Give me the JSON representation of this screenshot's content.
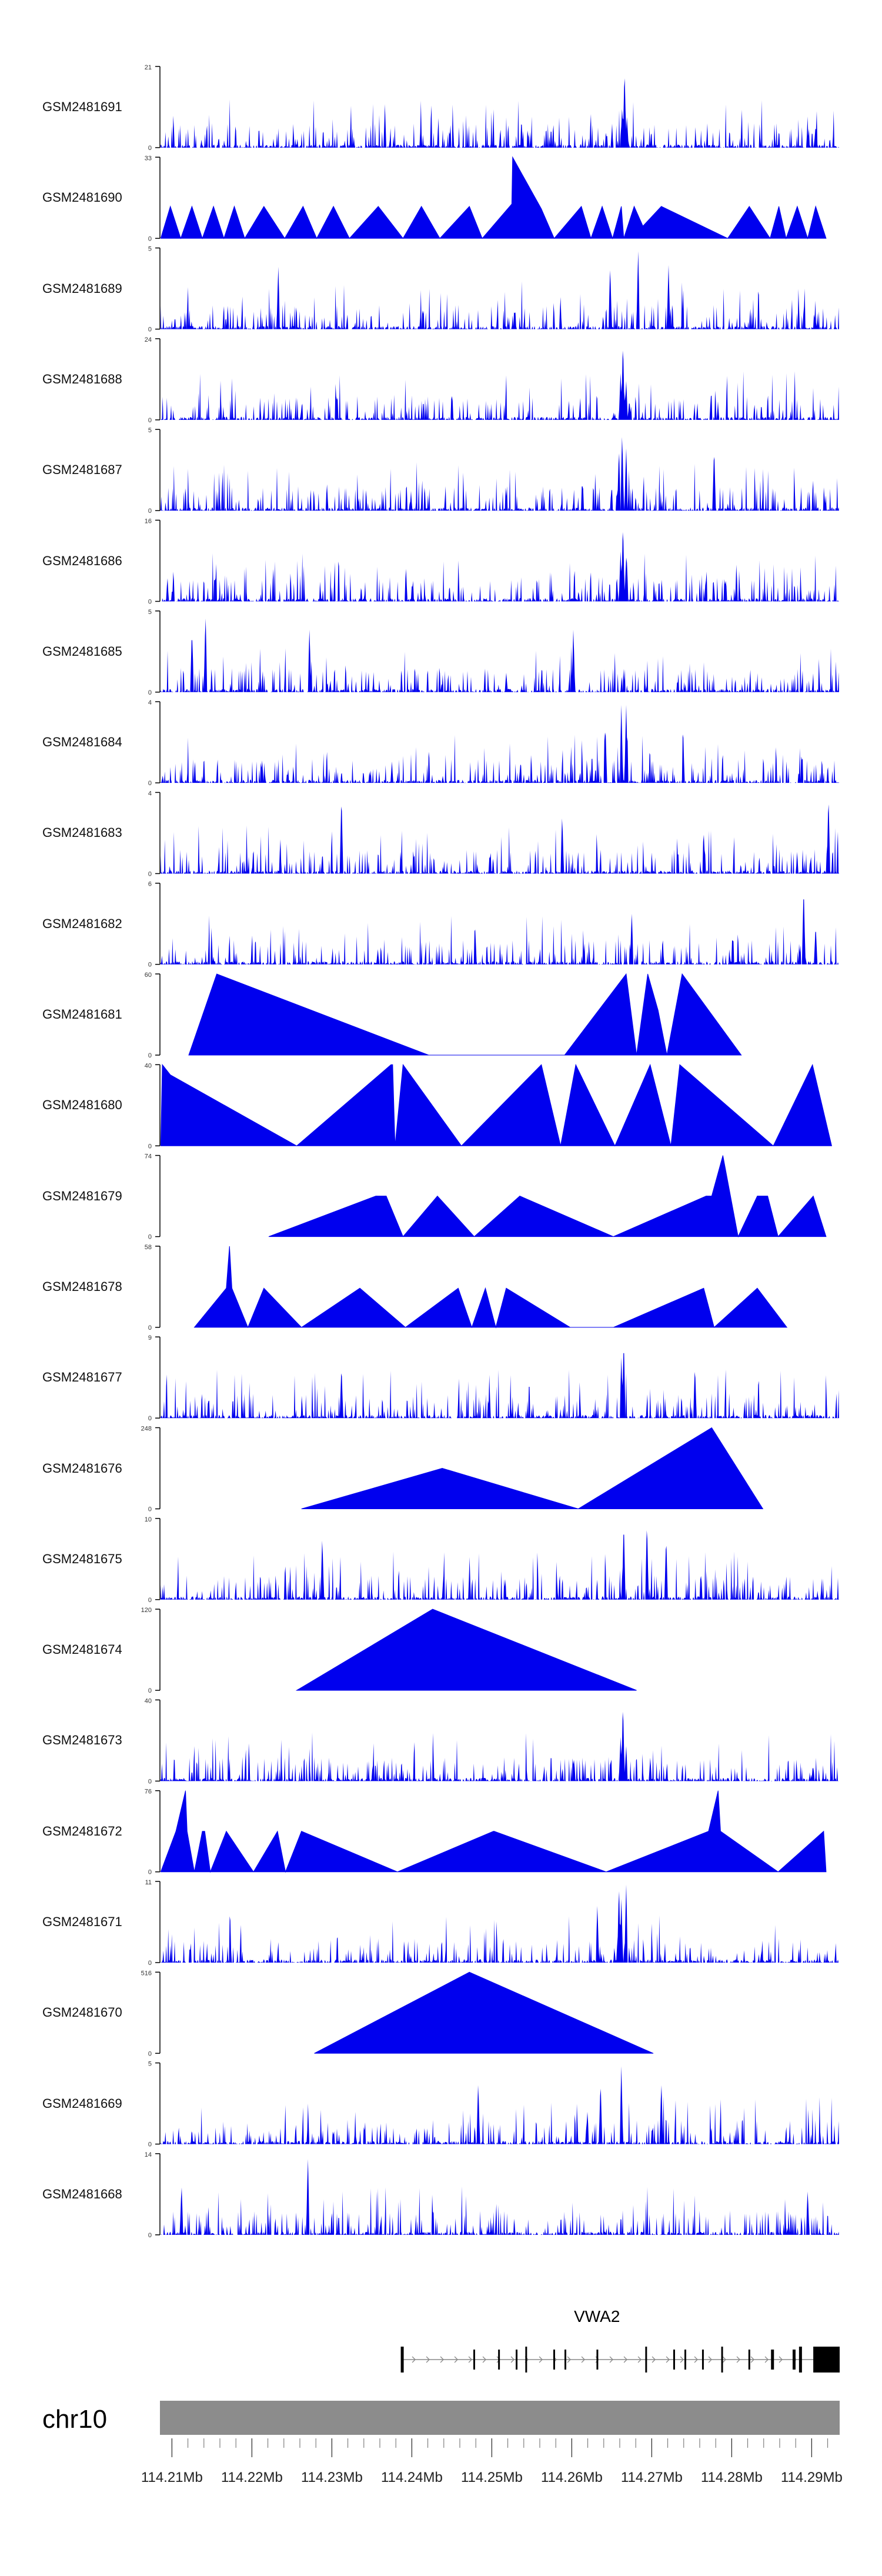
{
  "chart_data": {
    "type": "area",
    "title": "",
    "xlabel": "",
    "ylabel": "",
    "colors": {
      "signal": "#0000ee",
      "chrom_bar": "#8c8c8c",
      "gene": "#000000",
      "axis": "#000000"
    },
    "genome_axis": {
      "chromosome": "chr10",
      "unit": "Mb",
      "range": [
        114.2085,
        114.2935
      ],
      "major_ticks": [
        114.21,
        114.22,
        114.23,
        114.24,
        114.25,
        114.26,
        114.27,
        114.28,
        114.29
      ],
      "tick_labels": [
        "114.21Mb",
        "114.22Mb",
        "114.23Mb",
        "114.24Mb",
        "114.25Mb",
        "114.26Mb",
        "114.27Mb",
        "114.28Mb",
        "114.29Mb"
      ],
      "minor_tick_step": 0.002
    },
    "tracks": [
      {
        "name": "GSM2481691",
        "ymax": 21,
        "style": "dense",
        "peaks": [
          {
            "x": 114.2666,
            "y": 21
          },
          {
            "x": 114.2663,
            "y": 11
          },
          {
            "x": 114.2669,
            "y": 8
          },
          {
            "x": 114.2905,
            "y": 6
          }
        ]
      },
      {
        "name": "GSM2481690",
        "ymax": 33,
        "style": "sparse",
        "points": [
          [
            114.2086,
            0
          ],
          [
            114.2098,
            13
          ],
          [
            114.2111,
            0
          ],
          [
            114.2125,
            13
          ],
          [
            114.2138,
            0
          ],
          [
            114.2152,
            13
          ],
          [
            114.2165,
            0
          ],
          [
            114.2178,
            13
          ],
          [
            114.2191,
            0
          ],
          [
            114.2215,
            13
          ],
          [
            114.2241,
            0
          ],
          [
            114.2264,
            13
          ],
          [
            114.2281,
            0
          ],
          [
            114.2302,
            13
          ],
          [
            114.2322,
            0
          ],
          [
            114.2358,
            13
          ],
          [
            114.2389,
            0
          ],
          [
            114.2412,
            13
          ],
          [
            114.2435,
            0
          ],
          [
            114.2472,
            13
          ],
          [
            114.2488,
            0
          ],
          [
            114.2525,
            14
          ],
          [
            114.2526,
            33
          ],
          [
            114.2562,
            12
          ],
          [
            114.2578,
            0
          ],
          [
            114.2612,
            13
          ],
          [
            114.2624,
            0
          ],
          [
            114.2638,
            13
          ],
          [
            114.2651,
            0
          ],
          [
            114.2662,
            13
          ],
          [
            114.2665,
            0
          ],
          [
            114.2678,
            13
          ],
          [
            114.2689,
            5
          ],
          [
            114.2712,
            13
          ],
          [
            114.2795,
            0
          ],
          [
            114.2822,
            13
          ],
          [
            114.2848,
            0
          ],
          [
            114.2859,
            13
          ],
          [
            114.2868,
            0
          ],
          [
            114.2882,
            13
          ],
          [
            114.2895,
            0
          ],
          [
            114.2905,
            13
          ],
          [
            114.2918,
            0
          ]
        ]
      },
      {
        "name": "GSM2481689",
        "ymax": 5,
        "style": "dense",
        "peaks": [
          {
            "x": 114.2683,
            "y": 5
          },
          {
            "x": 114.2648,
            "y": 4
          },
          {
            "x": 114.2721,
            "y": 4
          },
          {
            "x": 114.2233,
            "y": 4
          }
        ]
      },
      {
        "name": "GSM2481688",
        "ymax": 24,
        "style": "dense",
        "peaks": [
          {
            "x": 114.2664,
            "y": 24
          },
          {
            "x": 114.2661,
            "y": 14
          },
          {
            "x": 114.2668,
            "y": 12
          },
          {
            "x": 114.2672,
            "y": 6
          }
        ]
      },
      {
        "name": "GSM2481687",
        "ymax": 5,
        "style": "dense",
        "peaks": [
          {
            "x": 114.2663,
            "y": 5
          },
          {
            "x": 114.2668,
            "y": 4
          },
          {
            "x": 114.2659,
            "y": 4
          },
          {
            "x": 114.2778,
            "y": 4
          }
        ]
      },
      {
        "name": "GSM2481686",
        "ymax": 16,
        "style": "dense",
        "peaks": [
          {
            "x": 114.2664,
            "y": 16
          },
          {
            "x": 114.2661,
            "y": 10
          },
          {
            "x": 114.2668,
            "y": 9
          }
        ]
      },
      {
        "name": "GSM2481685",
        "ymax": 5,
        "style": "dense",
        "peaks": [
          {
            "x": 114.2142,
            "y": 5
          },
          {
            "x": 114.2125,
            "y": 4
          },
          {
            "x": 114.2602,
            "y": 4
          },
          {
            "x": 114.2272,
            "y": 4
          }
        ]
      },
      {
        "name": "GSM2481684",
        "ymax": 4,
        "style": "dense",
        "peaks": [
          {
            "x": 114.2662,
            "y": 4
          },
          {
            "x": 114.2668,
            "y": 4
          },
          {
            "x": 114.2642,
            "y": 3
          }
        ]
      },
      {
        "name": "GSM2481683",
        "ymax": 4,
        "style": "dense",
        "peaks": [
          {
            "x": 114.2921,
            "y": 4
          },
          {
            "x": 114.2312,
            "y": 4
          },
          {
            "x": 114.2588,
            "y": 3
          }
        ]
      },
      {
        "name": "GSM2481682",
        "ymax": 6,
        "style": "dense",
        "peaks": [
          {
            "x": 114.289,
            "y": 6
          },
          {
            "x": 114.2675,
            "y": 4
          },
          {
            "x": 114.2905,
            "y": 3
          }
        ]
      },
      {
        "name": "GSM2481681",
        "ymax": 60,
        "style": "sparse",
        "points": [
          [
            114.2121,
            0
          ],
          [
            114.2156,
            60
          ],
          [
            114.2421,
            0
          ],
          [
            114.2591,
            0
          ],
          [
            114.2668,
            60
          ],
          [
            114.2681,
            0
          ],
          [
            114.2695,
            60
          ],
          [
            114.2708,
            33
          ],
          [
            114.2719,
            0
          ],
          [
            114.2738,
            60
          ],
          [
            114.2812,
            0
          ]
        ]
      },
      {
        "name": "GSM2481680",
        "ymax": 40,
        "style": "sparse",
        "points": [
          [
            114.2086,
            0
          ],
          [
            114.2088,
            40
          ],
          [
            114.2098,
            35
          ],
          [
            114.2256,
            0
          ],
          [
            114.2374,
            40
          ],
          [
            114.2376,
            40
          ],
          [
            114.2379,
            0
          ],
          [
            114.2389,
            40
          ],
          [
            114.2462,
            0
          ],
          [
            114.2562,
            40
          ],
          [
            114.2586,
            0
          ],
          [
            114.2605,
            40
          ],
          [
            114.2654,
            0
          ],
          [
            114.2698,
            40
          ],
          [
            114.2724,
            0
          ],
          [
            114.2735,
            40
          ],
          [
            114.2852,
            0
          ],
          [
            114.2901,
            40
          ],
          [
            114.2925,
            0
          ]
        ]
      },
      {
        "name": "GSM2481679",
        "ymax": 74,
        "style": "sparse",
        "points": [
          [
            114.2221,
            0
          ],
          [
            114.2355,
            37
          ],
          [
            114.2368,
            37
          ],
          [
            114.2389,
            0
          ],
          [
            114.2432,
            37
          ],
          [
            114.2478,
            0
          ],
          [
            114.2535,
            37
          ],
          [
            114.2652,
            0
          ],
          [
            114.2768,
            37
          ],
          [
            114.2775,
            37
          ],
          [
            114.2789,
            74
          ],
          [
            114.2808,
            0
          ],
          [
            114.2832,
            37
          ],
          [
            114.2845,
            37
          ],
          [
            114.2858,
            0
          ],
          [
            114.2902,
            37
          ],
          [
            114.2918,
            0
          ]
        ]
      },
      {
        "name": "GSM2481678",
        "ymax": 58,
        "style": "sparse",
        "points": [
          [
            114.2128,
            0
          ],
          [
            114.2168,
            28
          ],
          [
            114.2172,
            58
          ],
          [
            114.2175,
            28
          ],
          [
            114.2195,
            0
          ],
          [
            114.2215,
            28
          ],
          [
            114.2262,
            0
          ],
          [
            114.2335,
            28
          ],
          [
            114.2392,
            0
          ],
          [
            114.2458,
            28
          ],
          [
            114.2475,
            0
          ],
          [
            114.2492,
            28
          ],
          [
            114.2505,
            0
          ],
          [
            114.2518,
            28
          ],
          [
            114.2598,
            0
          ],
          [
            114.2652,
            0
          ],
          [
            114.2765,
            28
          ],
          [
            114.2778,
            0
          ],
          [
            114.2832,
            28
          ],
          [
            114.2869,
            0
          ]
        ]
      },
      {
        "name": "GSM2481677",
        "ymax": 9,
        "style": "dense",
        "peaks": [
          {
            "x": 114.2665,
            "y": 9
          },
          {
            "x": 114.2662,
            "y": 7
          },
          {
            "x": 114.2754,
            "y": 6
          },
          {
            "x": 114.2312,
            "y": 6
          }
        ]
      },
      {
        "name": "GSM2481676",
        "ymax": 248,
        "style": "sparse",
        "points": [
          [
            114.2262,
            0
          ],
          [
            114.2438,
            124
          ],
          [
            114.2608,
            0
          ],
          [
            114.2775,
            248
          ],
          [
            114.2839,
            0
          ]
        ]
      },
      {
        "name": "GSM2481675",
        "ymax": 10,
        "style": "dense",
        "peaks": [
          {
            "x": 114.2665,
            "y": 10
          },
          {
            "x": 114.2694,
            "y": 10
          },
          {
            "x": 114.2718,
            "y": 8
          },
          {
            "x": 114.2288,
            "y": 8
          }
        ]
      },
      {
        "name": "GSM2481674",
        "ymax": 120,
        "style": "sparse",
        "points": [
          [
            114.2256,
            0
          ],
          [
            114.2426,
            120
          ],
          [
            114.2681,
            0
          ]
        ]
      },
      {
        "name": "GSM2481673",
        "ymax": 40,
        "style": "dense",
        "peaks": [
          {
            "x": 114.2664,
            "y": 40
          },
          {
            "x": 114.2661,
            "y": 22
          },
          {
            "x": 114.2668,
            "y": 18
          }
        ]
      },
      {
        "name": "GSM2481672",
        "ymax": 76,
        "style": "sparse",
        "points": [
          [
            114.2086,
            0
          ],
          [
            114.2105,
            38
          ],
          [
            114.2117,
            76
          ],
          [
            114.2119,
            38
          ],
          [
            114.2128,
            0
          ],
          [
            114.2138,
            38
          ],
          [
            114.2141,
            38
          ],
          [
            114.2148,
            0
          ],
          [
            114.2168,
            38
          ],
          [
            114.2202,
            0
          ],
          [
            114.2232,
            38
          ],
          [
            114.2242,
            0
          ],
          [
            114.2262,
            38
          ],
          [
            114.2382,
            0
          ],
          [
            114.2502,
            38
          ],
          [
            114.2503,
            38
          ],
          [
            114.2643,
            0
          ],
          [
            114.2771,
            38
          ],
          [
            114.2783,
            76
          ],
          [
            114.2786,
            38
          ],
          [
            114.2858,
            0
          ],
          [
            114.2915,
            38
          ],
          [
            114.2918,
            0
          ]
        ]
      },
      {
        "name": "GSM2481671",
        "ymax": 11,
        "style": "dense",
        "peaks": [
          {
            "x": 114.2659,
            "y": 11
          },
          {
            "x": 114.2668,
            "y": 11
          },
          {
            "x": 114.2662,
            "y": 9
          },
          {
            "x": 114.2632,
            "y": 8
          }
        ]
      },
      {
        "name": "GSM2481670",
        "ymax": 516,
        "style": "sparse",
        "points": [
          [
            114.2278,
            0
          ],
          [
            114.2472,
            516
          ],
          [
            114.2702,
            0
          ]
        ]
      },
      {
        "name": "GSM2481669",
        "ymax": 5,
        "style": "dense",
        "peaks": [
          {
            "x": 114.2662,
            "y": 5
          },
          {
            "x": 114.2483,
            "y": 4
          },
          {
            "x": 114.2636,
            "y": 4
          },
          {
            "x": 114.2712,
            "y": 4
          }
        ]
      },
      {
        "name": "GSM2481668",
        "ymax": 14,
        "style": "dense",
        "peaks": [
          {
            "x": 114.227,
            "y": 14
          },
          {
            "x": 114.2112,
            "y": 9
          },
          {
            "x": 114.2895,
            "y": 8
          }
        ]
      }
    ],
    "gene_track": {
      "gene_name": "VWA2",
      "start": 114.2388,
      "end": 114.2935,
      "strand": "+",
      "exons": [
        114.2388,
        114.2478,
        114.2509,
        114.2531,
        114.2543,
        114.2578,
        114.2592,
        114.2632,
        114.2693,
        114.2728,
        114.2742,
        114.2764,
        114.2788,
        114.2822,
        114.2851,
        114.2878,
        114.2886
      ],
      "utr_end_block": [
        114.2902,
        114.2935
      ]
    }
  }
}
